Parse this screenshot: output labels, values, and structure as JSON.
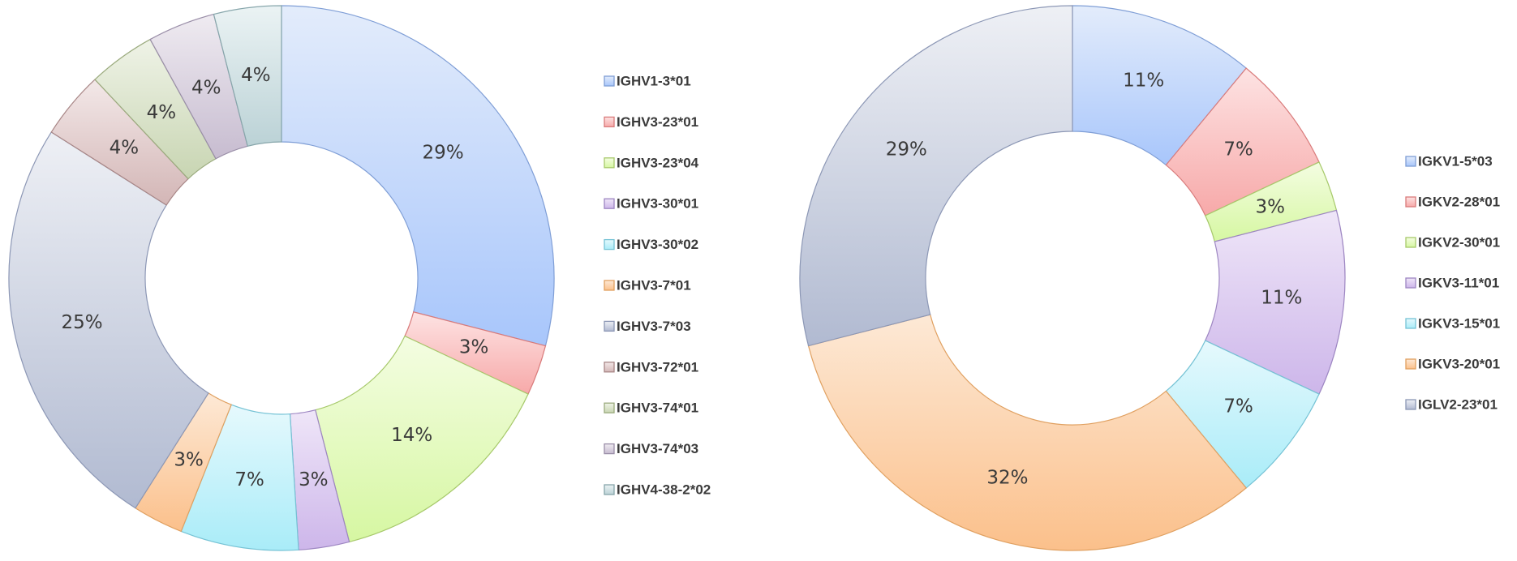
{
  "chart_data": [
    {
      "type": "pie",
      "series": [
        {
          "name": "IGHV1-3*01",
          "value": 29,
          "label": "29%",
          "color_top": "#e3ecfb",
          "color_bottom": "#a8c6fb",
          "stroke": "#7f9ed6"
        },
        {
          "name": "IGHV3-23*01",
          "value": 3,
          "label": "3%",
          "color_top": "#fde3e3",
          "color_bottom": "#f7a9a9",
          "stroke": "#d97b7b"
        },
        {
          "name": "IGHV3-23*04",
          "value": 14,
          "label": "14%",
          "color_top": "#f4fde2",
          "color_bottom": "#d6f7a2",
          "stroke": "#a7c96b"
        },
        {
          "name": "IGHV3-30*01",
          "value": 3,
          "label": "3%",
          "color_top": "#efe6f8",
          "color_bottom": "#cdb6ea",
          "stroke": "#9d86c2"
        },
        {
          "name": "IGHV3-30*02",
          "value": 7,
          "label": "7%",
          "color_top": "#e6f9fd",
          "color_bottom": "#a9ecf8",
          "stroke": "#76c3d5"
        },
        {
          "name": "IGHV3-7*01",
          "value": 3,
          "label": "3%",
          "color_top": "#fde9d6",
          "color_bottom": "#fbc08b",
          "stroke": "#e0a060"
        },
        {
          "name": "IGHV3-7*03",
          "value": 25,
          "label": "25%",
          "color_top": "#eef0f5",
          "color_bottom": "#b1bad1",
          "stroke": "#8c97b5"
        },
        {
          "name": "IGHV3-72*01",
          "value": 4,
          "label": "4%",
          "color_top": "#f3e8e8",
          "color_bottom": "#d3b6b6",
          "stroke": "#a88686"
        },
        {
          "name": "IGHV3-74*01",
          "value": 4,
          "label": "4%",
          "color_top": "#eff3e7",
          "color_bottom": "#c8d5b2",
          "stroke": "#9bab7e"
        },
        {
          "name": "IGHV3-74*03",
          "value": 4,
          "label": "4%",
          "color_top": "#efebf1",
          "color_bottom": "#c7bcd0",
          "stroke": "#9a8ea8"
        },
        {
          "name": "IGHV4-38-2*02",
          "value": 4,
          "label": "4%",
          "color_top": "#ebf3f4",
          "color_bottom": "#bbd2d6",
          "stroke": "#87a6ab"
        }
      ]
    },
    {
      "type": "pie",
      "series": [
        {
          "name": "IGKV1-5*03",
          "value": 11,
          "label": "11%",
          "color_top": "#e3ecfb",
          "color_bottom": "#a8c6fb",
          "stroke": "#7f9ed6"
        },
        {
          "name": "IGKV2-28*01",
          "value": 7,
          "label": "7%",
          "color_top": "#fde3e3",
          "color_bottom": "#f7a9a9",
          "stroke": "#d97b7b"
        },
        {
          "name": "IGKV2-30*01",
          "value": 3,
          "label": "3%",
          "color_top": "#f4fde2",
          "color_bottom": "#d6f7a2",
          "stroke": "#a7c96b"
        },
        {
          "name": "IGKV3-11*01",
          "value": 11,
          "label": "11%",
          "color_top": "#efe6f8",
          "color_bottom": "#cdb6ea",
          "stroke": "#9d86c2"
        },
        {
          "name": "IGKV3-15*01",
          "value": 7,
          "label": "7%",
          "color_top": "#e6f9fd",
          "color_bottom": "#a9ecf8",
          "stroke": "#76c3d5"
        },
        {
          "name": "IGKV3-20*01",
          "value": 32,
          "label": "32%",
          "color_top": "#fde9d6",
          "color_bottom": "#fbc08b",
          "stroke": "#e0a060"
        },
        {
          "name": "IGLV2-23*01",
          "value": 29,
          "label": "29%",
          "color_top": "#eef0f5",
          "color_bottom": "#b1bad1",
          "stroke": "#8c97b5"
        }
      ]
    }
  ]
}
